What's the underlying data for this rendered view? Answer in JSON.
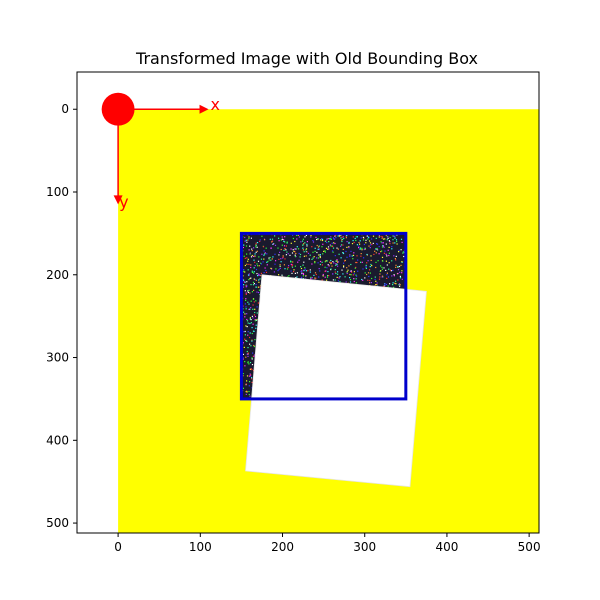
{
  "chart_data": {
    "type": "image",
    "title": "Transformed Image with Old Bounding Box",
    "xlabel": "",
    "ylabel": "",
    "xlim": [
      -50,
      512
    ],
    "ylim": [
      512,
      -45
    ],
    "y_axis_inverted": true,
    "grid": false,
    "xticks": [
      0,
      100,
      200,
      300,
      400,
      500
    ],
    "yticks": [
      0,
      100,
      200,
      300,
      400,
      500
    ],
    "image": {
      "extent": [
        0,
        512,
        0,
        512
      ],
      "background_color": "#ffff00"
    },
    "transformed_region": {
      "fill_color": "#ffffff",
      "corners": [
        [
          175,
          200
        ],
        [
          375,
          220
        ],
        [
          355,
          456
        ],
        [
          155,
          437
        ]
      ]
    },
    "noise_region": {
      "description": "random colored pixel noise",
      "corners": [
        [
          150,
          150
        ],
        [
          350,
          150
        ],
        [
          350,
          350
        ],
        [
          150,
          350
        ]
      ]
    },
    "old_bounding_box": {
      "x": 150,
      "y": 150,
      "width": 200,
      "height": 200,
      "color": "#0000cc"
    },
    "origin_marker": {
      "x": 0,
      "y": 0,
      "radius": 20,
      "color": "#ff0000"
    },
    "axis_arrows": {
      "color": "#ff0000",
      "x_arrow": {
        "label": "x",
        "from": [
          0,
          0
        ],
        "to": [
          110,
          0
        ]
      },
      "y_arrow": {
        "label": "y",
        "from": [
          0,
          0
        ],
        "to": [
          0,
          115
        ]
      }
    }
  }
}
